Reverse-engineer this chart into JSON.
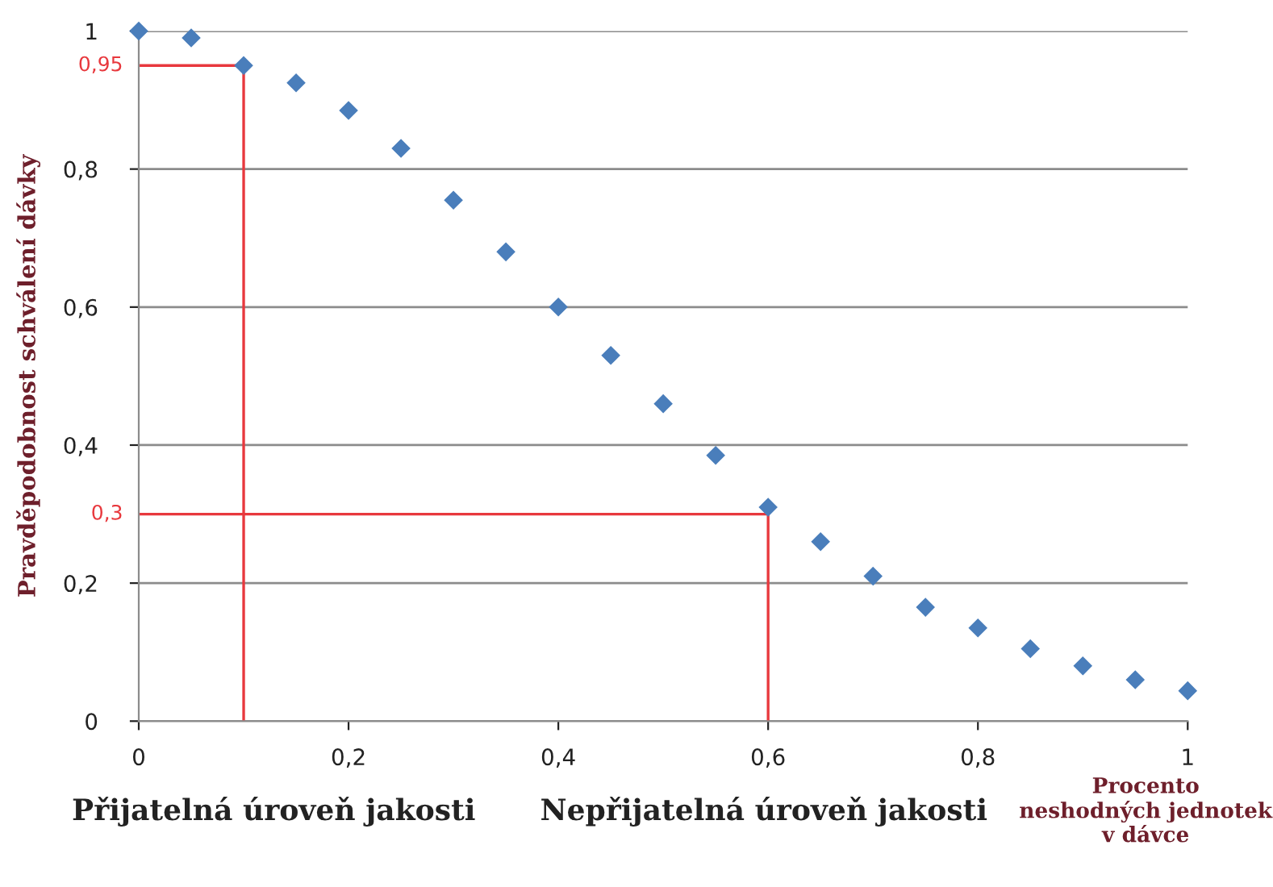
{
  "chart_data": {
    "type": "scatter",
    "xlabel": "Procento neshodných jednotek v dávce",
    "ylabel": "Pravděpodobnost schválení dávky",
    "x": [
      0,
      0.05,
      0.1,
      0.15,
      0.2,
      0.25,
      0.3,
      0.35,
      0.4,
      0.45,
      0.5,
      0.55,
      0.6,
      0.65,
      0.7,
      0.75,
      0.8,
      0.85,
      0.9,
      0.95,
      1
    ],
    "series": [
      {
        "color": "#4a7ebb",
        "values": [
          1.0,
          0.99,
          0.95,
          0.925,
          0.885,
          0.83,
          0.755,
          0.68,
          0.6,
          0.53,
          0.46,
          0.385,
          0.31,
          0.26,
          0.21,
          0.165,
          0.135,
          0.105,
          0.08,
          0.06,
          0.044
        ]
      }
    ],
    "marker": "diamond",
    "xlim": [
      0,
      1
    ],
    "ylim": [
      0,
      1
    ],
    "xticks": [
      0,
      {
        "value": 0.2,
        "label": "0,2"
      },
      {
        "value": 0.4,
        "label": "0,4"
      },
      {
        "value": 0.6,
        "label": "0,6"
      },
      {
        "value": 0.8,
        "label": "0,8"
      },
      1
    ],
    "yticks": [
      0,
      {
        "value": 0.2,
        "label": "0,2"
      },
      {
        "value": 0.4,
        "label": "0,4"
      },
      {
        "value": 0.6,
        "label": "0,6"
      },
      {
        "value": 0.8,
        "label": "0,8"
      },
      1
    ],
    "grid": "y",
    "legend": false,
    "ref_lines": [
      {
        "axis": "y",
        "value": 0.95,
        "label": "0,95",
        "color": "#e8383d"
      },
      {
        "axis": "y",
        "value": 0.3,
        "label": "0,3",
        "color": "#e8383d"
      },
      {
        "axis": "x",
        "value": 0.1,
        "color": "#e8383d"
      },
      {
        "axis": "x",
        "value": 0.6,
        "color": "#e8383d"
      }
    ],
    "annotations": [
      "Přijatelná úroveň jakosti",
      "Nepřijatelná úroveň jakosti"
    ]
  }
}
